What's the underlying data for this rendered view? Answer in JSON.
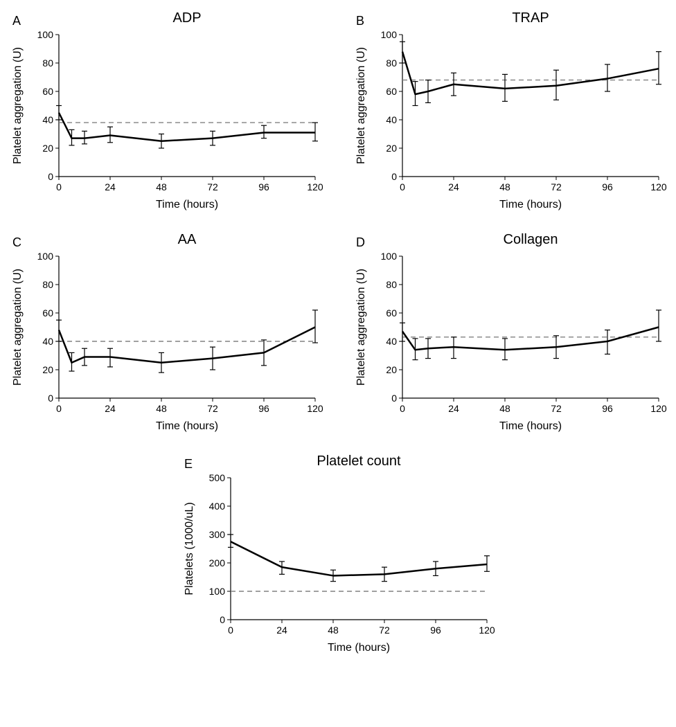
{
  "figure": {
    "background_color": "#ffffff",
    "line_color": "#000000",
    "axis_color": "#000000",
    "dash_color": "#808080",
    "title_fontsize": 20,
    "label_fontsize": 16,
    "tick_fontsize": 14,
    "panel_letter_fontsize": 18,
    "line_width": 2.5,
    "error_cap_width": 8,
    "error_line_width": 1.2,
    "dims": {
      "total_w": 976,
      "total_h": 1050
    }
  },
  "panels": [
    {
      "id": "A",
      "title": "ADP",
      "xlabel": "Time (hours)",
      "ylabel": "Platelet aggregation (U)",
      "xlim": [
        0,
        120
      ],
      "ylim": [
        0,
        100
      ],
      "xticks": [
        0,
        24,
        48,
        72,
        96,
        120
      ],
      "yticks": [
        0,
        20,
        40,
        60,
        80,
        100
      ],
      "reference_line": 38,
      "x": [
        0,
        6,
        12,
        24,
        48,
        72,
        96,
        120
      ],
      "y": [
        45,
        27,
        27,
        29,
        25,
        27,
        31,
        31
      ],
      "elo": [
        40,
        22,
        23,
        24,
        20,
        22,
        27,
        25
      ],
      "ehi": [
        50,
        33,
        32,
        35,
        30,
        32,
        36,
        38
      ]
    },
    {
      "id": "B",
      "title": "TRAP",
      "xlabel": "Time (hours)",
      "ylabel": "Platelet aggregation (U)",
      "xlim": [
        0,
        120
      ],
      "ylim": [
        0,
        100
      ],
      "xticks": [
        0,
        24,
        48,
        72,
        96,
        120
      ],
      "yticks": [
        0,
        20,
        40,
        60,
        80,
        100
      ],
      "reference_line": 68,
      "x": [
        0,
        6,
        12,
        24,
        48,
        72,
        96,
        120
      ],
      "y": [
        88,
        58,
        60,
        65,
        62,
        64,
        69,
        76
      ],
      "elo": [
        80,
        50,
        52,
        57,
        53,
        54,
        60,
        65
      ],
      "ehi": [
        95,
        67,
        68,
        73,
        72,
        75,
        79,
        88
      ]
    },
    {
      "id": "C",
      "title": "AA",
      "xlabel": "Time (hours)",
      "ylabel": "Platelet aggregation (U)",
      "xlim": [
        0,
        120
      ],
      "ylim": [
        0,
        100
      ],
      "xticks": [
        0,
        24,
        48,
        72,
        96,
        120
      ],
      "yticks": [
        0,
        20,
        40,
        60,
        80,
        100
      ],
      "reference_line": 40,
      "x": [
        0,
        6,
        12,
        24,
        48,
        72,
        96,
        120
      ],
      "y": [
        48,
        25,
        29,
        29,
        25,
        28,
        32,
        50
      ],
      "elo": [
        40,
        19,
        23,
        22,
        18,
        20,
        23,
        39
      ],
      "ehi": [
        55,
        32,
        35,
        35,
        32,
        36,
        41,
        62
      ]
    },
    {
      "id": "D",
      "title": "Collagen",
      "xlabel": "Time (hours)",
      "ylabel": "Platelet aggregation (U)",
      "xlim": [
        0,
        120
      ],
      "ylim": [
        0,
        100
      ],
      "xticks": [
        0,
        24,
        48,
        72,
        96,
        120
      ],
      "yticks": [
        0,
        20,
        40,
        60,
        80,
        100
      ],
      "reference_line": 43,
      "x": [
        0,
        6,
        12,
        24,
        48,
        72,
        96,
        120
      ],
      "y": [
        47,
        34,
        35,
        36,
        34,
        36,
        40,
        50
      ],
      "elo": [
        40,
        27,
        28,
        28,
        27,
        28,
        31,
        40
      ],
      "ehi": [
        53,
        42,
        42,
        43,
        42,
        44,
        48,
        62
      ]
    },
    {
      "id": "E",
      "title": "Platelet count",
      "xlabel": "Time (hours)",
      "ylabel": "Platelets (1000/uL)",
      "xlim": [
        0,
        120
      ],
      "ylim": [
        0,
        500
      ],
      "xticks": [
        0,
        24,
        48,
        72,
        96,
        120
      ],
      "yticks": [
        0,
        100,
        200,
        300,
        400,
        500
      ],
      "reference_line": 100,
      "x": [
        0,
        24,
        48,
        72,
        96,
        120
      ],
      "y": [
        275,
        185,
        155,
        160,
        180,
        195
      ],
      "elo": [
        255,
        160,
        135,
        135,
        155,
        170
      ],
      "ehi": [
        300,
        205,
        175,
        185,
        205,
        225
      ]
    }
  ]
}
